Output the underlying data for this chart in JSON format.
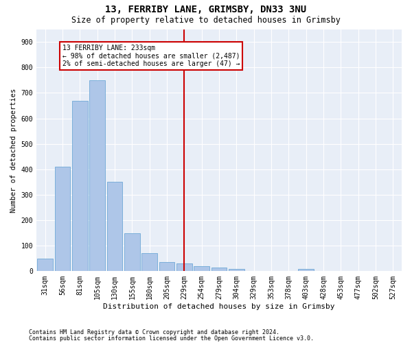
{
  "title": "13, FERRIBY LANE, GRIMSBY, DN33 3NU",
  "subtitle": "Size of property relative to detached houses in Grimsby",
  "xlabel": "Distribution of detached houses by size in Grimsby",
  "ylabel": "Number of detached properties",
  "footnote1": "Contains HM Land Registry data © Crown copyright and database right 2024.",
  "footnote2": "Contains public sector information licensed under the Open Government Licence v3.0.",
  "categories": [
    "31sqm",
    "56sqm",
    "81sqm",
    "105sqm",
    "130sqm",
    "155sqm",
    "180sqm",
    "205sqm",
    "229sqm",
    "254sqm",
    "279sqm",
    "304sqm",
    "329sqm",
    "353sqm",
    "378sqm",
    "403sqm",
    "428sqm",
    "453sqm",
    "477sqm",
    "502sqm",
    "527sqm"
  ],
  "bar_values": [
    50,
    410,
    670,
    750,
    350,
    150,
    70,
    35,
    30,
    20,
    15,
    10,
    0,
    0,
    0,
    10,
    0,
    0,
    0,
    0,
    0
  ],
  "bar_color": "#aec6e8",
  "bar_edgecolor": "#6fa8d6",
  "background_color": "#e8eef7",
  "grid_color": "#ffffff",
  "vline_x_index": 8,
  "vline_color": "#cc0000",
  "annotation_line1": "13 FERRIBY LANE: 233sqm",
  "annotation_line2": "← 98% of detached houses are smaller (2,487)",
  "annotation_line3": "2% of semi-detached houses are larger (47) →",
  "annotation_box_color": "#cc0000",
  "ylim": [
    0,
    950
  ],
  "yticks": [
    0,
    100,
    200,
    300,
    400,
    500,
    600,
    700,
    800,
    900
  ],
  "title_fontsize": 10,
  "subtitle_fontsize": 8.5,
  "xlabel_fontsize": 8,
  "ylabel_fontsize": 7.5,
  "tick_fontsize": 7,
  "annotation_fontsize": 7,
  "footnote_fontsize": 6
}
